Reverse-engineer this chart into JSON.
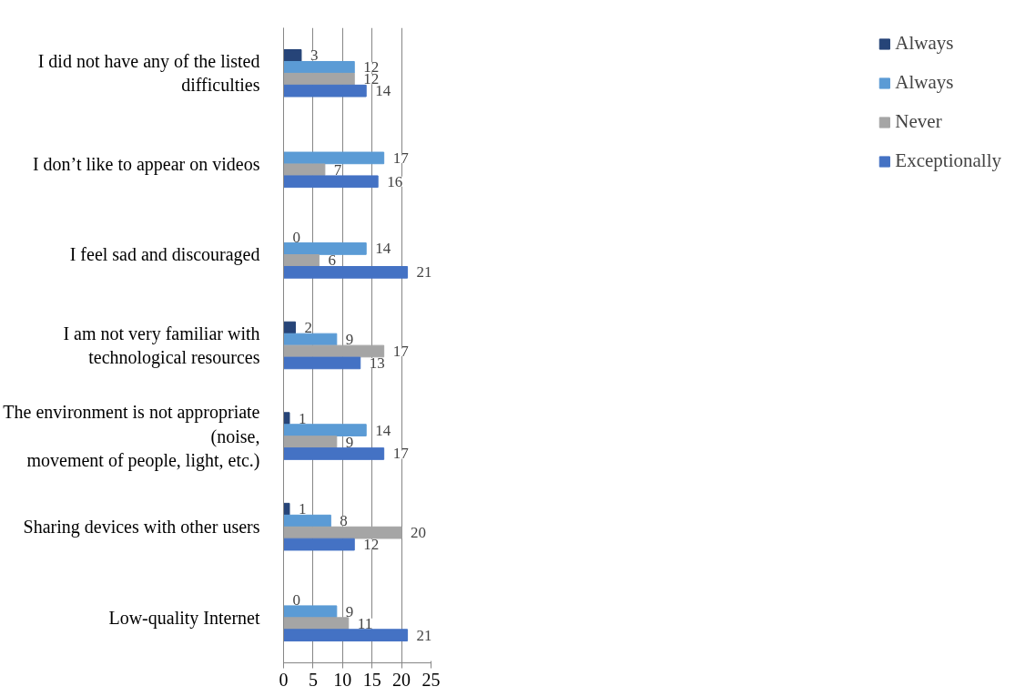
{
  "chart_data": {
    "type": "bar",
    "orientation": "horizontal",
    "categories": [
      "I did not have any of the listed\ndifficulties",
      "I don’t like to appear on videos",
      "I feel sad and discouraged",
      "I am not very familiar with\ntechnological resources",
      "The environment is not appropriate\n(noise,\nmovement of people, light, etc.)",
      "Sharing devices with other users",
      "Low-quality Internet"
    ],
    "series": [
      {
        "name": "Always",
        "color": "#264478",
        "values": [
          3,
          null,
          0,
          2,
          1,
          1,
          0
        ]
      },
      {
        "name": "Always",
        "color": "#5b9bd5",
        "values": [
          12,
          17,
          14,
          9,
          14,
          8,
          9
        ]
      },
      {
        "name": "Never",
        "color": "#a5a5a5",
        "values": [
          12,
          7,
          6,
          17,
          9,
          20,
          11
        ]
      },
      {
        "name": "Exceptionally",
        "color": "#4472c4",
        "values": [
          14,
          16,
          21,
          13,
          17,
          12,
          21
        ]
      }
    ],
    "xlim": [
      0,
      25
    ],
    "xticks": [
      0,
      5,
      10,
      15,
      20,
      25
    ],
    "grid": "x",
    "legend": "right",
    "data_labels": true
  }
}
